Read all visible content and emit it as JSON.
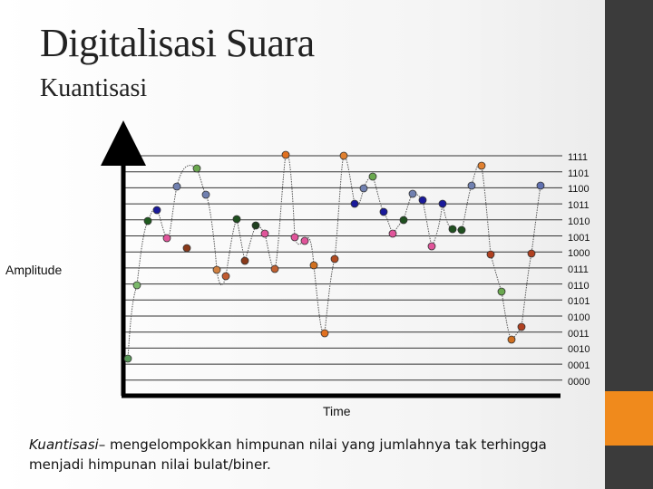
{
  "slide": {
    "title": "Digitalisasi Suara",
    "subtitle": "Kuantisasi",
    "amplitude_label": "Amplitude",
    "time_label": "Time",
    "levels": [
      "1111",
      "1101",
      "1100",
      "1011",
      "1010",
      "1001",
      "1000",
      "0111",
      "0110",
      "0101",
      "0100",
      "0011",
      "0010",
      "0001",
      "0000"
    ],
    "description_term": "Kuantisasi",
    "description_text": "– mengelompokkan himpunan nilai yang jumlahnya tak terhingga menjadi himpunan nilai bulat/biner."
  },
  "colors": {
    "sidebar_dark": "#3b3b3b",
    "sidebar_accent": "#f08a1c",
    "grid_line": "#222222",
    "wave": "#444444"
  }
}
